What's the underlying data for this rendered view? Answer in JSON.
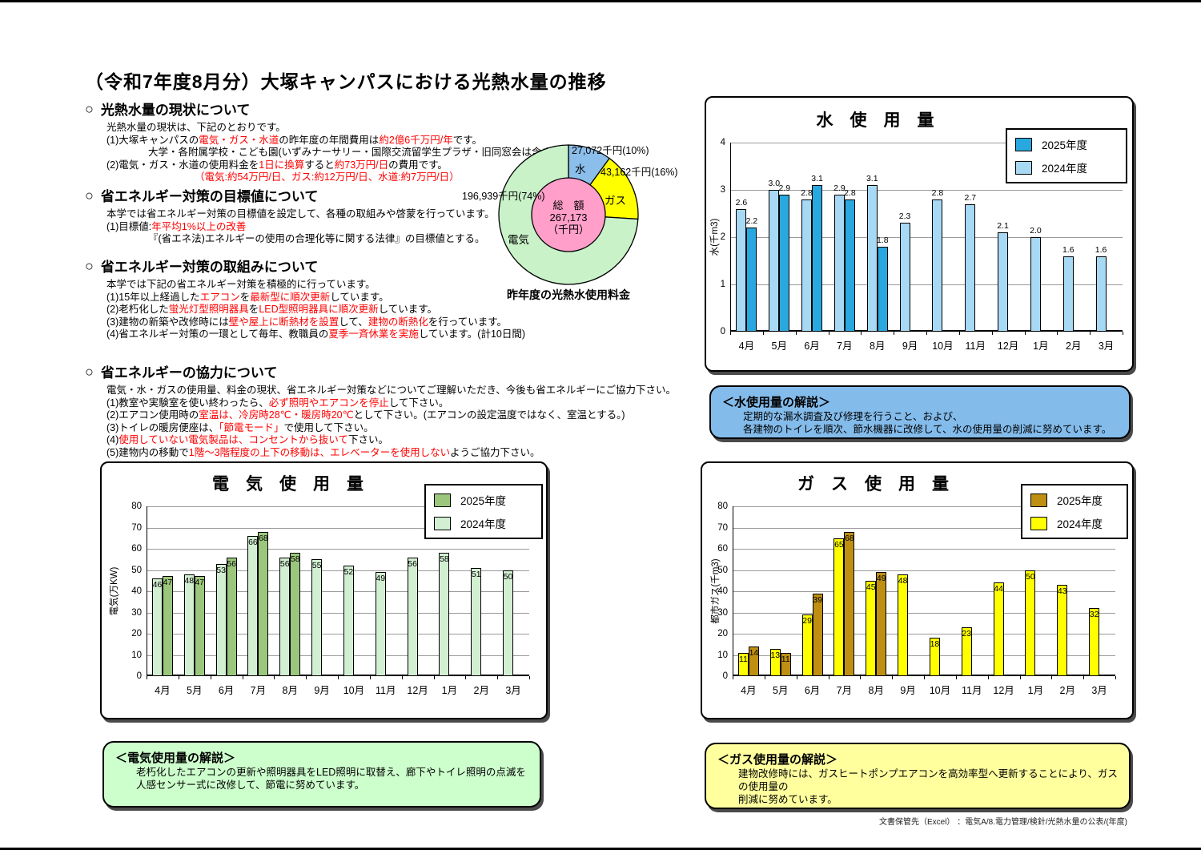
{
  "page": {
    "title": "（令和7年度8月分）大塚キャンパスにおける光熱水量の推移",
    "footer": "文書保管先（Excel） ：電気A/8.電力管理/検針/光熱水量の公表/(年度)"
  },
  "sections": [
    {
      "heading": "光熱水量の現状について",
      "lines": [
        {
          "indent": 0,
          "segs": [
            {
              "t": "光熱水量の現状は、下記のとおりです。"
            }
          ]
        },
        {
          "indent": 0,
          "segs": [
            {
              "t": "(1)大塚キャンパスの"
            },
            {
              "t": "電気・ガス・水道",
              "red": true
            },
            {
              "t": "の昨年度の年間費用は"
            },
            {
              "t": "約2億6千万円/年",
              "red": true
            },
            {
              "t": "です。"
            }
          ]
        },
        {
          "indent": 1,
          "segs": [
            {
              "t": "大学・各附属学校・こども園(いずみナーサリー・国際交流留学生プラザ・旧同窓会は含まない)"
            }
          ]
        },
        {
          "indent": 0,
          "segs": [
            {
              "t": "(2)電気・ガス・水道の使用料金を"
            },
            {
              "t": "1日に換算",
              "red": true
            },
            {
              "t": "すると"
            },
            {
              "t": "約73万円/日",
              "red": true
            },
            {
              "t": "の費用です。"
            }
          ]
        },
        {
          "indent": 2,
          "segs": [
            {
              "t": "（電気:約54万円/日、ガス:約12万円/日、水道:約7万円/日）",
              "red": true
            }
          ]
        }
      ]
    },
    {
      "heading": "省エネルギー対策の目標値について",
      "lines": [
        {
          "indent": 0,
          "segs": [
            {
              "t": "本学では省エネルギー対策の目標値を設定して、各種の取組みや啓蒙を行っています。"
            }
          ]
        },
        {
          "indent": 0,
          "segs": [
            {
              "t": "(1)目標値:"
            },
            {
              "t": "年平均1%以上の改善",
              "red": true
            }
          ]
        },
        {
          "indent": 1,
          "segs": [
            {
              "t": "『(省エネ法)エネルギーの使用の合理化等に関する法律』の目標値とする。"
            }
          ]
        }
      ]
    },
    {
      "heading": "省エネルギー対策の取組みについて",
      "lines": [
        {
          "indent": 0,
          "segs": [
            {
              "t": "本学では下記の省エネルギー対策を積極的に行っています。"
            }
          ]
        },
        {
          "indent": 0,
          "segs": [
            {
              "t": "(1)15年以上経過した"
            },
            {
              "t": "エアコン",
              "red": true
            },
            {
              "t": "を"
            },
            {
              "t": "最新型に順次更新",
              "red": true
            },
            {
              "t": "しています。"
            }
          ]
        },
        {
          "indent": 0,
          "segs": [
            {
              "t": "(2)老朽化した"
            },
            {
              "t": "蛍光灯型照明器具",
              "red": true
            },
            {
              "t": "を"
            },
            {
              "t": "LED型照明器具に順次更新",
              "red": true
            },
            {
              "t": "しています。"
            }
          ]
        },
        {
          "indent": 0,
          "segs": [
            {
              "t": "(3)建物の新築や改修時には"
            },
            {
              "t": "壁や屋上に断熱材を設置",
              "red": true
            },
            {
              "t": "して、"
            },
            {
              "t": "建物の断熱化",
              "red": true
            },
            {
              "t": "を行っています。"
            }
          ]
        },
        {
          "indent": 0,
          "segs": [
            {
              "t": "(4)省エネルギー対策の一環として毎年、教職員の"
            },
            {
              "t": "夏季一斉休業を実施",
              "red": true
            },
            {
              "t": "しています。(計10日間)"
            }
          ]
        }
      ]
    },
    {
      "heading": "省エネルギーの協力について",
      "lines": [
        {
          "indent": 0,
          "segs": [
            {
              "t": "電気・水・ガスの使用量、料金の現状、省エネルギー対策などについてご理解いただき、今後も省エネルギーにご協力下さい。"
            }
          ]
        },
        {
          "indent": 0,
          "segs": [
            {
              "t": "(1)教室や実験室を使い終わったら、"
            },
            {
              "t": "必ず照明やエアコンを停止",
              "red": true
            },
            {
              "t": "して下さい。"
            }
          ]
        },
        {
          "indent": 0,
          "segs": [
            {
              "t": "(2)エアコン使用時の"
            },
            {
              "t": "室温は、冷房時28℃・暖房時20℃",
              "red": true
            },
            {
              "t": "として下さい。(エアコンの設定温度ではなく、室温とする。)"
            }
          ]
        },
        {
          "indent": 0,
          "segs": [
            {
              "t": "(3)トイレの暖房便座は、"
            },
            {
              "t": "「節電モード」",
              "red": true
            },
            {
              "t": "で使用して下さい。"
            }
          ]
        },
        {
          "indent": 0,
          "segs": [
            {
              "t": "(4)"
            },
            {
              "t": "使用していない電気製品は、コンセントから抜いて",
              "red": true
            },
            {
              "t": "下さい。"
            }
          ]
        },
        {
          "indent": 0,
          "segs": [
            {
              "t": "(5)建物内の移動で"
            },
            {
              "t": "1階～3階程度の上下の移動は、エレベーターを使用しない",
              "red": true
            },
            {
              "t": "ようご協力下さい。"
            }
          ]
        }
      ]
    }
  ],
  "chart_data": [
    {
      "id": "fuel-cost-pie",
      "type": "pie",
      "title": "昨年度の光熱水使用料金",
      "center_label": [
        "総　額",
        "267,173",
        "（千円）"
      ],
      "total": 267173,
      "unit": "千円",
      "slices": [
        {
          "name": "水",
          "value": 27072,
          "pct": 10,
          "value_label": "27,072千円(10%)",
          "color": "#8CBEEC"
        },
        {
          "name": "ガス",
          "value": 43162,
          "pct": 16,
          "value_label": "43,162千円(16%)",
          "color": "#FFFF00"
        },
        {
          "name": "電気",
          "value": 196939,
          "pct": 74,
          "value_label": "196,939千円(74%)",
          "color": "#C9F2C9"
        }
      ],
      "center_color": "#FF9FCA"
    },
    {
      "id": "water",
      "type": "bar",
      "title": "水　使　用　量",
      "ylabel": "水(千m3)",
      "ylim": [
        0,
        4
      ],
      "ytick_step": 1,
      "decimals": 1,
      "grid": true,
      "legend_position": "top-right",
      "value_label_position": "above",
      "categories": [
        "4月",
        "5月",
        "6月",
        "7月",
        "8月",
        "9月",
        "10月",
        "11月",
        "12月",
        "1月",
        "2月",
        "3月"
      ],
      "series": [
        {
          "name": "2025年度",
          "color": "#29A8DF",
          "values": [
            2.2,
            2.9,
            3.1,
            2.8,
            1.8,
            null,
            null,
            null,
            null,
            null,
            null,
            null
          ]
        },
        {
          "name": "2024年度",
          "color": "#A7D8F4",
          "values": [
            2.6,
            3.0,
            2.8,
            2.9,
            3.1,
            2.3,
            2.8,
            2.7,
            2.1,
            2.0,
            1.6,
            1.6
          ]
        }
      ]
    },
    {
      "id": "electricity",
      "type": "bar",
      "title": "電　気　使　用　量",
      "ylabel": "電気(万KW)",
      "ylim": [
        0,
        80
      ],
      "ytick_step": 10,
      "decimals": 0,
      "grid": true,
      "legend_position": "top-right",
      "value_label_position": "inside",
      "categories": [
        "4月",
        "5月",
        "6月",
        "7月",
        "8月",
        "9月",
        "10月",
        "11月",
        "12月",
        "1月",
        "2月",
        "3月"
      ],
      "series": [
        {
          "name": "2025年度",
          "color": "#9BC77D",
          "values": [
            47,
            47,
            56,
            68,
            58,
            null,
            null,
            null,
            null,
            null,
            null,
            null
          ]
        },
        {
          "name": "2024年度",
          "color": "#D2EFD2",
          "values": [
            46,
            48,
            53,
            66,
            56,
            55,
            52,
            49,
            56,
            58,
            51,
            50
          ]
        }
      ]
    },
    {
      "id": "gas",
      "type": "bar",
      "title": "ガ　ス　使　用　量",
      "ylabel": "都市ガス(千m3)",
      "ylim": [
        0,
        80
      ],
      "ytick_step": 10,
      "decimals": 0,
      "grid": true,
      "legend_position": "top-right",
      "value_label_position": "inside",
      "categories": [
        "4月",
        "5月",
        "6月",
        "7月",
        "8月",
        "9月",
        "10月",
        "11月",
        "12月",
        "1月",
        "2月",
        "3月"
      ],
      "series": [
        {
          "name": "2025年度",
          "color": "#BE8F11",
          "values": [
            14,
            11,
            39,
            68,
            49,
            null,
            null,
            null,
            null,
            null,
            null,
            null
          ]
        },
        {
          "name": "2024年度",
          "color": "#FFFF00",
          "values": [
            11,
            13,
            29,
            65,
            45,
            48,
            18,
            23,
            44,
            50,
            43,
            32
          ]
        }
      ]
    }
  ],
  "explanations": [
    {
      "id": "water",
      "title": "＜水使用量の解説＞",
      "lines": [
        "定期的な漏水調査及び修理を行うこと、および、",
        "各建物のトイレを順次、節水機器に改修して、水の使用量の削減に努めています。"
      ],
      "color": "#83BBEB"
    },
    {
      "id": "electricity",
      "title": "＜電気使用量の解説＞",
      "lines": [
        "老朽化したエアコンの更新や照明器具をLED照明に取替え、廊下やトイレ照明の点滅を",
        "人感センサー式に改修して、節電に努めています。"
      ],
      "color": "#CDFFCD"
    },
    {
      "id": "gas",
      "title": "＜ガス使用量の解説＞",
      "lines": [
        "建物改修時には、ガスヒートポンプエアコンを高効率型へ更新することにより、ガスの使用量の",
        "削減に努めています。"
      ],
      "color": "#FFFF9E"
    }
  ]
}
